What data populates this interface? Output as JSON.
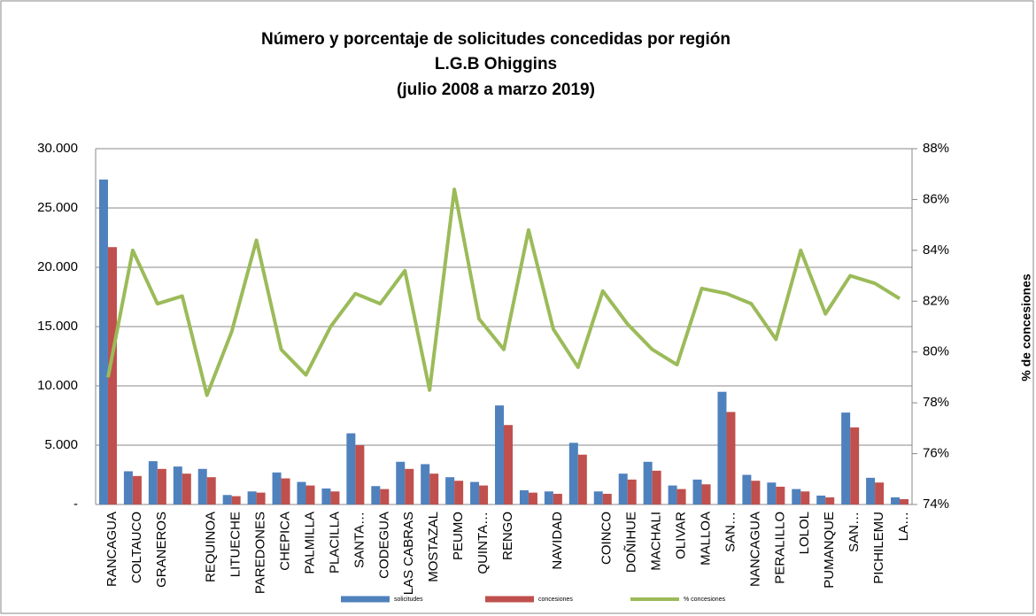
{
  "chart_data": {
    "type": "bar_line",
    "title": [
      "Número y porcentaje de solicitudes concedidas por región",
      "L.G.B Ohiggins",
      "(julio 2008 a marzo 2019)"
    ],
    "y2_label": "% de concesiones",
    "categories": [
      "RANCAGUA",
      "COLTAUCO",
      "GRANEROS",
      null,
      "REQUINOA",
      "LITUECHE",
      "PAREDONES",
      "CHEPICA",
      "PALMILLA",
      "PLACILLA",
      "SANTA…",
      "CODEGUA",
      "LAS CABRAS",
      "MOSTAZAL",
      "PEUMO",
      "QUINTA…",
      "RENGO",
      null,
      "NAVIDAD",
      null,
      "COINCO",
      "DOÑIHUE",
      "MACHALI",
      "OLIVAR",
      "MALLOA",
      "SAN…",
      "NANCAGUA",
      "PERALILLO",
      "LOLOL",
      "PUMANQUE",
      "SAN…",
      "PICHILEMU",
      "LA…"
    ],
    "series": [
      {
        "name": "solicitudes",
        "type": "bar",
        "color": "#4f81bd",
        "values": [
          27400,
          2800,
          3650,
          3200,
          3000,
          800,
          1100,
          2700,
          1900,
          1350,
          6000,
          1550,
          3600,
          3400,
          2300,
          1900,
          8350,
          1200,
          1100,
          5200,
          1100,
          2600,
          3600,
          1600,
          2100,
          9500,
          2500,
          1850,
          1300,
          750,
          7750,
          2250,
          600
        ]
      },
      {
        "name": "concesiones",
        "type": "bar",
        "color": "#c0504d",
        "values": [
          21700,
          2400,
          3000,
          2600,
          2300,
          700,
          1000,
          2200,
          1600,
          1100,
          5000,
          1300,
          3000,
          2600,
          2000,
          1600,
          6700,
          1000,
          900,
          4200,
          900,
          2100,
          2850,
          1300,
          1700,
          7800,
          2000,
          1500,
          1100,
          600,
          6500,
          1850,
          450
        ]
      },
      {
        "name": "% concesiones",
        "type": "line",
        "axis": "y2",
        "color": "#9bbb59",
        "values": [
          79.0,
          84.0,
          81.9,
          82.2,
          78.3,
          80.8,
          84.4,
          80.1,
          79.1,
          81.0,
          82.3,
          81.9,
          83.2,
          78.5,
          86.4,
          81.3,
          80.1,
          84.8,
          80.9,
          79.4,
          82.4,
          81.1,
          80.1,
          79.5,
          82.5,
          82.3,
          81.9,
          80.5,
          84.0,
          81.5,
          83.0,
          82.7,
          82.1
        ]
      }
    ],
    "ylim": [
      0,
      30000
    ],
    "yticks": [
      {
        "value": 0,
        "label": "-"
      },
      {
        "value": 5000,
        "label": "5.000"
      },
      {
        "value": 10000,
        "label": "10.000"
      },
      {
        "value": 15000,
        "label": "15.000"
      },
      {
        "value": 20000,
        "label": "20.000"
      },
      {
        "value": 25000,
        "label": "25.000"
      },
      {
        "value": 30000,
        "label": "30.000"
      }
    ],
    "y2lim": [
      74,
      88
    ],
    "y2ticks": [
      {
        "value": 74,
        "label": "74%"
      },
      {
        "value": 76,
        "label": "76%"
      },
      {
        "value": 78,
        "label": "78%"
      },
      {
        "value": 80,
        "label": "80%"
      },
      {
        "value": 82,
        "label": "82%"
      },
      {
        "value": 84,
        "label": "84%"
      },
      {
        "value": 86,
        "label": "86%"
      },
      {
        "value": 88,
        "label": "88%"
      }
    ],
    "grid": true,
    "legend": "bottom"
  }
}
